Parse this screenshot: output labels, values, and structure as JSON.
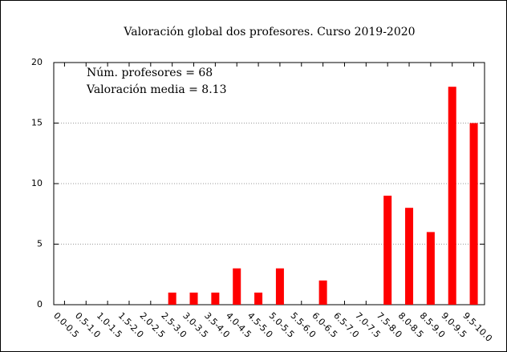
{
  "chart_data": {
    "type": "bar",
    "title": "Valoración global dos profesores. Curso 2019-2020",
    "annotations": [
      "Núm. profesores = 68",
      "Valoración media = 8.13"
    ],
    "categories": [
      "0.0-0.5",
      "0.5-1.0",
      "1.0-1.5",
      "1.5-2.0",
      "2.0-2.5",
      "2.5-3.0",
      "3.0-3.5",
      "3.5-4.0",
      "4.0-4.5",
      "4.5-5.0",
      "5.0-5.5",
      "5.5-6.0",
      "6.0-6.5",
      "6.5-7.0",
      "7.0-7.5",
      "7.5-8.0",
      "8.0-8.5",
      "8.5-9.0",
      "9.0-9.5",
      "9.5-10.0"
    ],
    "values": [
      0,
      0,
      0,
      0,
      0,
      1,
      1,
      1,
      3,
      1,
      3,
      0,
      2,
      0,
      0,
      9,
      8,
      6,
      18,
      15
    ],
    "color": "#ff0000",
    "ylim": [
      0,
      20
    ],
    "yticks": [
      0,
      5,
      10,
      15,
      20
    ],
    "grid": true
  }
}
